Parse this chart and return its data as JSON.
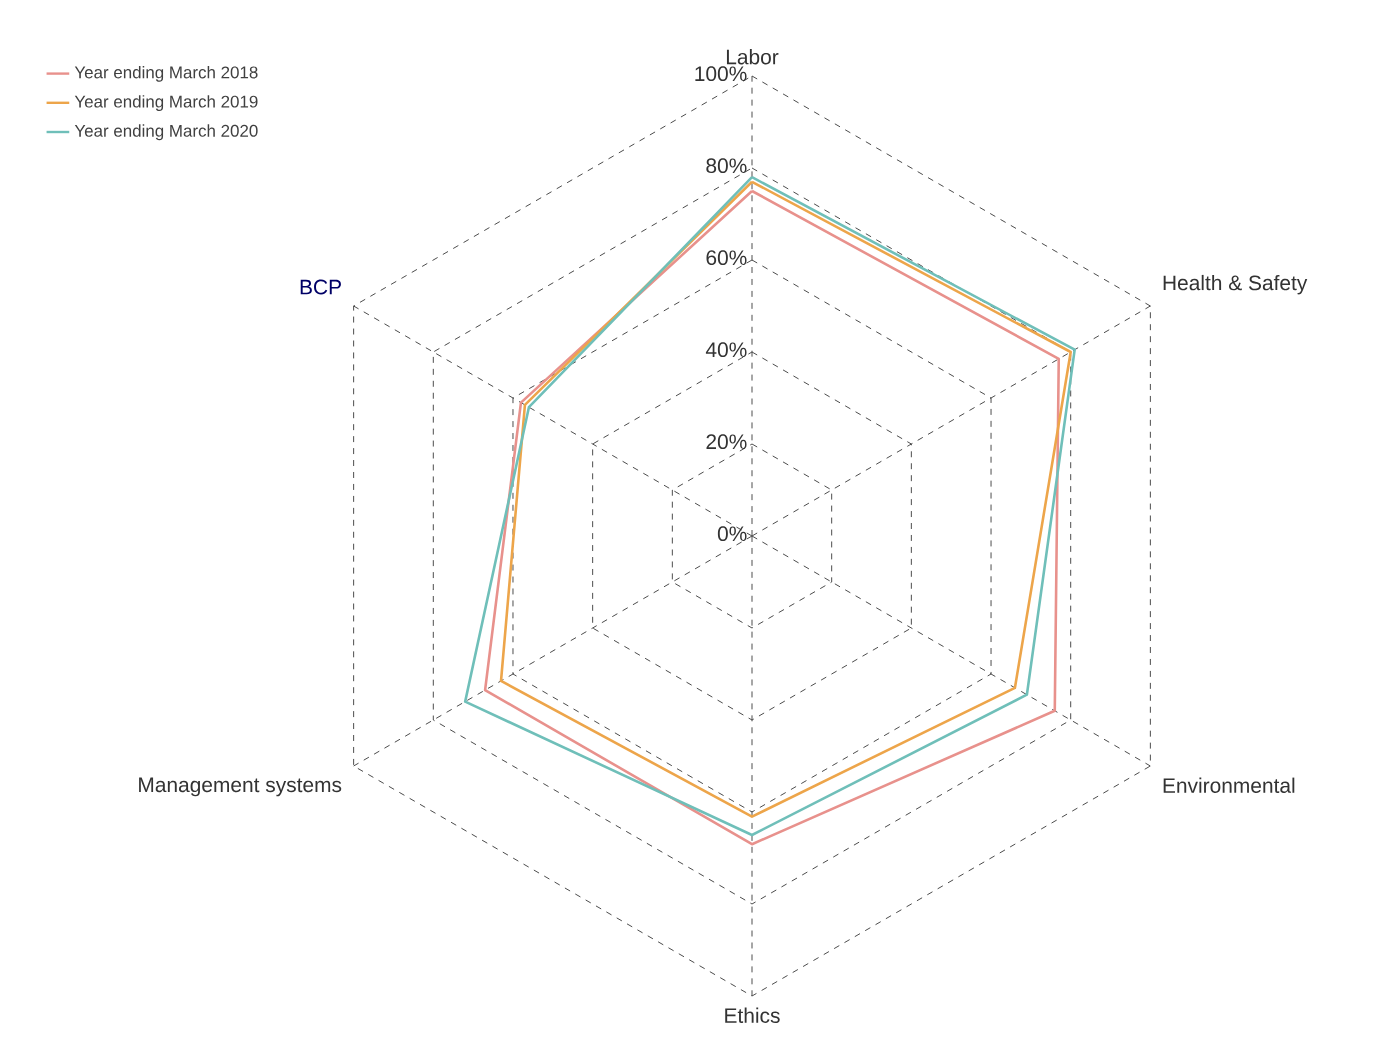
{
  "chart_data": {
    "type": "radar",
    "categories": [
      "Labor",
      "Health & Safety",
      "Environmental",
      "Ethics",
      "Management systems",
      "BCP"
    ],
    "series": [
      {
        "name": "Year ending March 2018",
        "color": "#e8918c",
        "values": [
          75,
          77,
          76,
          67,
          67,
          58
        ]
      },
      {
        "name": "Year ending March 2019",
        "color": "#eda54a",
        "values": [
          77,
          80,
          66,
          61,
          63,
          57
        ]
      },
      {
        "name": "Year ending March 2020",
        "color": "#6fbfb9",
        "values": [
          78,
          81,
          69,
          65,
          72,
          56
        ]
      }
    ],
    "ylim": [
      0,
      100
    ],
    "yticks": [
      {
        "value": 0,
        "label": "0%"
      },
      {
        "value": 20,
        "label": "20%"
      },
      {
        "value": 40,
        "label": "40%"
      },
      {
        "value": 60,
        "label": "60%"
      },
      {
        "value": 80,
        "label": "80%"
      },
      {
        "value": 100,
        "label": "100%"
      }
    ],
    "grid": true,
    "legend": "top left",
    "marker": "none",
    "line_style": "solid"
  }
}
